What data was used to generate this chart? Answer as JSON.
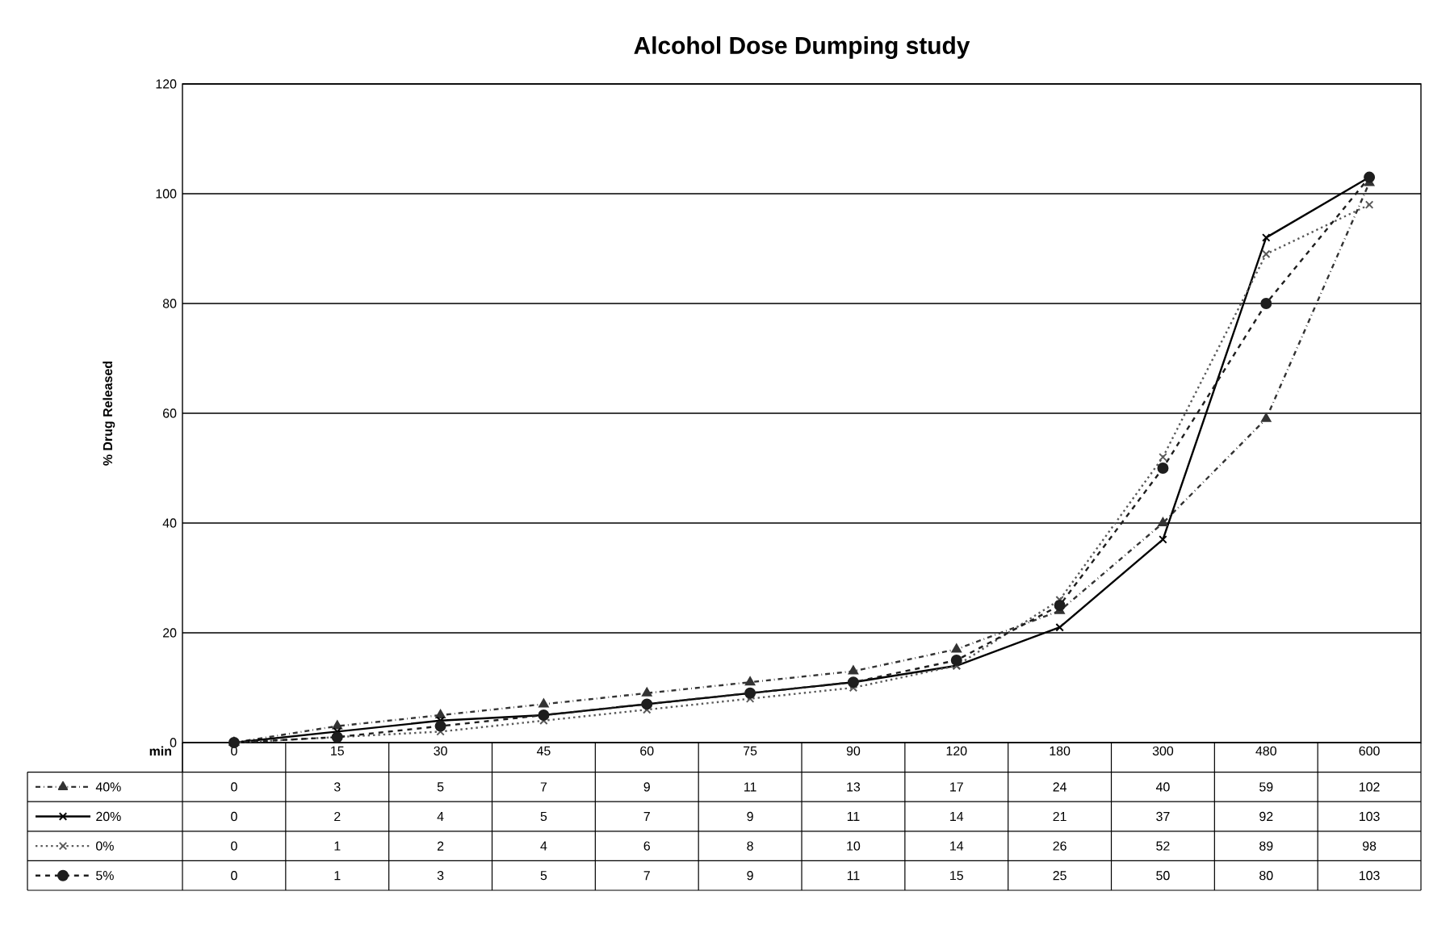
{
  "chart_data": {
    "type": "line",
    "title": "Alcohol Dose Dumping study",
    "ylabel": "% Drug Released",
    "xlabel": "min",
    "categories": [
      "0",
      "15",
      "30",
      "45",
      "60",
      "75",
      "90",
      "120",
      "180",
      "300",
      "480",
      "600"
    ],
    "series": [
      {
        "name": "40%",
        "color": "#333333",
        "marker": "triangle",
        "line_style": "dashdot",
        "values": [
          0,
          3,
          5,
          7,
          9,
          11,
          13,
          17,
          24,
          40,
          59,
          102
        ]
      },
      {
        "name": "20%",
        "color": "#000000",
        "marker": "cross",
        "line_style": "solid",
        "values": [
          0,
          2,
          4,
          5,
          7,
          9,
          11,
          14,
          21,
          37,
          92,
          103
        ]
      },
      {
        "name": "0%",
        "color": "#5a5a5a",
        "marker": "cross",
        "line_style": "dotted",
        "values": [
          0,
          1,
          2,
          4,
          6,
          8,
          10,
          14,
          26,
          52,
          89,
          98
        ]
      },
      {
        "name": "5%",
        "color": "#1e1e1e",
        "marker": "circle",
        "line_style": "dashed",
        "values": [
          0,
          1,
          3,
          5,
          7,
          9,
          11,
          15,
          25,
          50,
          80,
          103
        ]
      }
    ],
    "ylim": [
      0,
      120
    ],
    "yticks": [
      0,
      20,
      40,
      60,
      80,
      100,
      120
    ],
    "grid": "y",
    "legend": "bottom",
    "data_labels": true
  }
}
